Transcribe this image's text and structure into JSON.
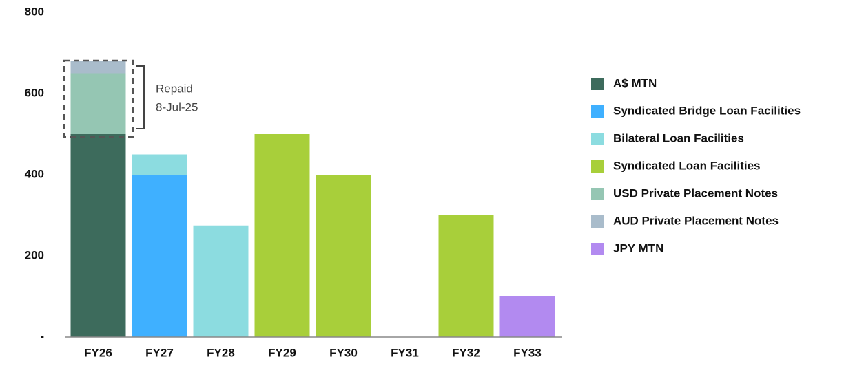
{
  "chart_data": {
    "type": "stacked_bar",
    "categories": [
      "FY26",
      "FY27",
      "FY28",
      "FY29",
      "FY30",
      "FY31",
      "FY32",
      "FY33"
    ],
    "series": [
      {
        "name": "A$ MTN",
        "color": "#3d6b5c",
        "values": [
          500,
          0,
          0,
          0,
          0,
          0,
          0,
          0
        ]
      },
      {
        "name": "Syndicated Bridge Loan Facilities",
        "color": "#3fb0ff",
        "values": [
          0,
          400,
          0,
          0,
          0,
          0,
          0,
          0
        ]
      },
      {
        "name": "Bilateral Loan Facilities",
        "color": "#8cdce0",
        "values": [
          0,
          50,
          275,
          0,
          0,
          0,
          0,
          0
        ]
      },
      {
        "name": "Syndicated Loan Facilities",
        "color": "#a8cf3a",
        "values": [
          0,
          0,
          0,
          500,
          400,
          0,
          300,
          0
        ]
      },
      {
        "name": "USD Private Placement Notes",
        "color": "#95c6b3",
        "values": [
          150,
          0,
          0,
          0,
          0,
          0,
          0,
          0
        ]
      },
      {
        "name": "AUD Private Placement Notes",
        "color": "#a9bccb",
        "values": [
          30,
          0,
          0,
          0,
          0,
          0,
          0,
          0
        ]
      },
      {
        "name": "JPY MTN",
        "color": "#b28af0",
        "values": [
          0,
          0,
          0,
          0,
          0,
          0,
          0,
          100
        ]
      }
    ],
    "ylim": [
      0,
      800
    ],
    "yticks": [
      {
        "value": 0,
        "label": "-"
      },
      200,
      400,
      600,
      800
    ],
    "grid": false,
    "legend": "right",
    "annotation": [
      "Repaid",
      "8-Jul-25"
    ]
  }
}
